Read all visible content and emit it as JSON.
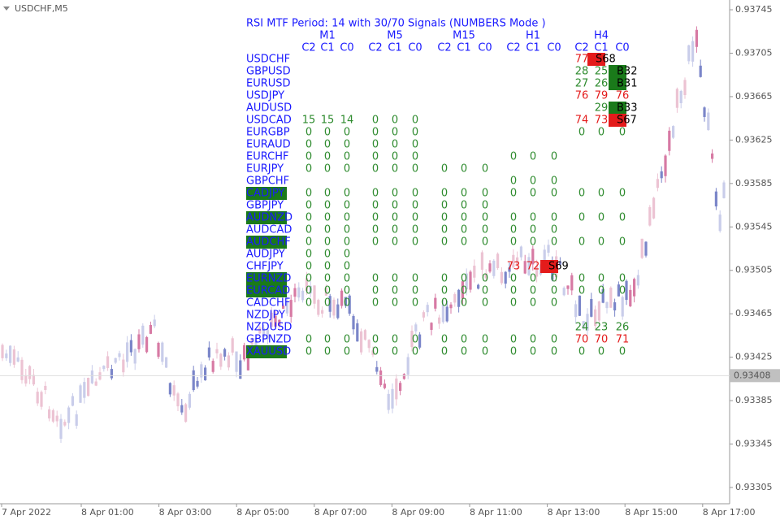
{
  "symbol": "USDCHF,M5",
  "price_axis": {
    "ylim": [
      0.9329,
      0.93754
    ],
    "yticks": [
      0.93745,
      0.93705,
      0.93665,
      0.93625,
      0.93585,
      0.93545,
      0.93505,
      0.93465,
      0.93425,
      0.93385,
      0.93345,
      0.93305
    ],
    "current_price": 0.93408
  },
  "time_axis": [
    "7 Apr 2022",
    "8 Apr 01:00",
    "8 Apr 03:00",
    "8 Apr 05:00",
    "8 Apr 07:00",
    "8 Apr 09:00",
    "8 Apr 11:00",
    "8 Apr 13:00",
    "8 Apr 15:00",
    "8 Apr 17:00"
  ],
  "table": {
    "title": "RSI MTF Period: 14 with  30/70 Signals (NUMBERS Mode )",
    "timeframes": [
      "M1",
      "M5",
      "M15",
      "H1",
      "H4"
    ],
    "columns": [
      "C2",
      "C1",
      "C0"
    ],
    "pair_color": "#1a1aff",
    "cell_color": "#2e8b2e",
    "rows": [
      {
        "pair": "USDCHF",
        "cells": [
          null,
          null,
          null,
          null,
          null,
          null,
          null,
          null,
          null,
          null,
          null,
          null,
          {
            "value": 77,
            "color": "#e41b1b"
          },
          {
            "signal": "S68",
            "color": "#e41b1b"
          },
          null
        ]
      },
      {
        "pair": "GBPUSD",
        "cells": [
          null,
          null,
          null,
          null,
          null,
          null,
          null,
          null,
          null,
          null,
          null,
          null,
          28,
          25,
          {
            "signal": "B32",
            "color": "#1a7a1a"
          }
        ]
      },
      {
        "pair": "EURUSD",
        "cells": [
          null,
          null,
          null,
          null,
          null,
          null,
          null,
          null,
          null,
          null,
          null,
          null,
          27,
          26,
          {
            "signal": "B31",
            "color": "#1a7a1a"
          }
        ]
      },
      {
        "pair": "USDJPY",
        "cells": [
          null,
          null,
          null,
          null,
          null,
          null,
          null,
          null,
          null,
          null,
          null,
          null,
          {
            "value": 76,
            "color": "#e41b1b"
          },
          {
            "value": 79,
            "color": "#e41b1b"
          },
          {
            "value": 76,
            "color": "#e41b1b"
          }
        ]
      },
      {
        "pair": "AUDUSD",
        "cells": [
          null,
          null,
          null,
          null,
          null,
          null,
          null,
          null,
          null,
          null,
          null,
          null,
          null,
          29,
          {
            "signal": "B33",
            "color": "#1a7a1a"
          }
        ]
      },
      {
        "pair": "USDCAD",
        "cells": [
          15,
          15,
          14,
          0,
          0,
          0,
          null,
          null,
          null,
          null,
          null,
          null,
          {
            "value": 74,
            "color": "#e41b1b"
          },
          {
            "value": 73,
            "color": "#e41b1b"
          },
          {
            "signal": "S67",
            "color": "#e41b1b"
          }
        ]
      },
      {
        "pair": "EURGBP",
        "cells": [
          0,
          0,
          0,
          0,
          0,
          0,
          null,
          null,
          null,
          null,
          null,
          null,
          0,
          0,
          0
        ]
      },
      {
        "pair": "EURAUD",
        "cells": [
          0,
          0,
          0,
          0,
          0,
          0,
          null,
          null,
          null,
          null,
          null,
          null,
          null,
          null,
          null
        ]
      },
      {
        "pair": "EURCHF",
        "cells": [
          0,
          0,
          0,
          0,
          0,
          0,
          null,
          null,
          null,
          0,
          0,
          0,
          null,
          null,
          null
        ]
      },
      {
        "pair": "EURJPY",
        "cells": [
          0,
          0,
          0,
          0,
          0,
          0,
          0,
          0,
          0,
          null,
          null,
          null,
          null,
          null,
          null
        ]
      },
      {
        "pair": "GBPCHF",
        "cells": [
          null,
          null,
          null,
          null,
          null,
          null,
          null,
          null,
          null,
          0,
          0,
          0,
          null,
          null,
          null
        ]
      },
      {
        "pair": "CADJPY",
        "box": "#1a7a1a",
        "cells": [
          0,
          0,
          0,
          0,
          0,
          0,
          0,
          0,
          0,
          0,
          0,
          0,
          0,
          0,
          0
        ]
      },
      {
        "pair": "GBPJPY",
        "cells": [
          0,
          0,
          0,
          0,
          0,
          0,
          0,
          0,
          0,
          null,
          null,
          null,
          null,
          null,
          null
        ]
      },
      {
        "pair": "AUDNZD",
        "box": "#1a7a1a",
        "cells": [
          0,
          0,
          0,
          0,
          0,
          0,
          0,
          0,
          0,
          0,
          0,
          0,
          0,
          0,
          0
        ]
      },
      {
        "pair": "AUDCAD",
        "cells": [
          0,
          0,
          0,
          0,
          0,
          0,
          0,
          0,
          0,
          0,
          0,
          0,
          null,
          null,
          null
        ]
      },
      {
        "pair": "AUDCHF",
        "box": "#1a7a1a",
        "cells": [
          0,
          0,
          0,
          0,
          0,
          0,
          0,
          0,
          0,
          0,
          0,
          0,
          0,
          0,
          0
        ]
      },
      {
        "pair": "AUDJPY",
        "cells": [
          0,
          0,
          0,
          null,
          null,
          null,
          null,
          null,
          null,
          null,
          null,
          null,
          null,
          null,
          null
        ]
      },
      {
        "pair": "CHFJPY",
        "cells": [
          0,
          0,
          0,
          null,
          null,
          null,
          null,
          null,
          null,
          {
            "value": 73,
            "color": "#e41b1b"
          },
          {
            "value": 72,
            "color": "#e41b1b"
          },
          {
            "signal": "S69",
            "color": "#e41b1b"
          },
          null,
          null,
          null
        ]
      },
      {
        "pair": "EURNZD",
        "box": "#1a7a1a",
        "cells": [
          0,
          0,
          0,
          0,
          0,
          0,
          0,
          0,
          0,
          0,
          0,
          0,
          0,
          0,
          0
        ]
      },
      {
        "pair": "EURCAD",
        "box": "#1a7a1a",
        "cells": [
          0,
          0,
          0,
          0,
          0,
          0,
          0,
          0,
          0,
          0,
          0,
          0,
          0,
          0,
          0
        ]
      },
      {
        "pair": "CADCHF",
        "cells": [
          0,
          0,
          0,
          0,
          0,
          0,
          0,
          0,
          0,
          0,
          0,
          0,
          null,
          null,
          null
        ]
      },
      {
        "pair": "NZDJPY",
        "cells": [
          null,
          null,
          null,
          null,
          null,
          null,
          null,
          null,
          null,
          null,
          null,
          null,
          null,
          null,
          null
        ]
      },
      {
        "pair": "NZDUSD",
        "cells": [
          null,
          null,
          null,
          null,
          null,
          null,
          null,
          null,
          null,
          null,
          null,
          null,
          24,
          23,
          26
        ]
      },
      {
        "pair": "GBPNZD",
        "cells": [
          0,
          0,
          0,
          0,
          0,
          0,
          0,
          0,
          0,
          0,
          0,
          0,
          {
            "value": 70,
            "color": "#e41b1b"
          },
          {
            "value": 70,
            "color": "#e41b1b"
          },
          {
            "value": 71,
            "color": "#e41b1b"
          }
        ]
      },
      {
        "pair": "XAUUSD",
        "box": "#1a7a1a",
        "cells": [
          0,
          0,
          0,
          0,
          0,
          0,
          0,
          0,
          0,
          0,
          0,
          0,
          0,
          0,
          0
        ]
      }
    ]
  }
}
